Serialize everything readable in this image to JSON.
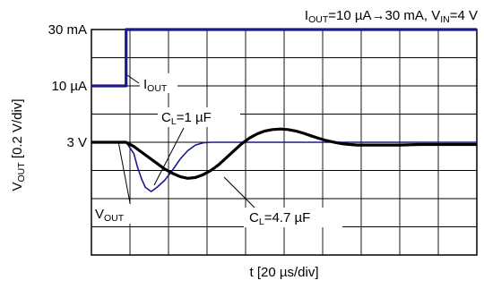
{
  "chart_data": {
    "type": "line",
    "title": "I_OUT=10 µA→30 mA, V_IN=4 V",
    "title_parts": {
      "i": "I",
      "i_sub": "OUT",
      "rest1": "=10 µA→30 mA, V",
      "v_sub": "IN",
      "rest2": "=4 V"
    },
    "xlabel": "t [20 µs/div]",
    "ylabel": "V_OUT [0.2 V/div]",
    "ylabel_parts": {
      "v": "V",
      "sub": "OUT",
      "rest": " [0.2 V/div]"
    },
    "x_units": "µs",
    "x_per_div": 20,
    "x_divisions": 10,
    "y_divisions": 8,
    "xlim": [
      0,
      200
    ],
    "grid": true,
    "y_tick_labels": [
      {
        "text": "30 mA",
        "div": 0
      },
      {
        "text": "10 µA",
        "div": 2
      },
      {
        "text": "3 V",
        "div": 4
      }
    ],
    "annotations": {
      "iout": {
        "main": "I",
        "sub": "OUT"
      },
      "cl1": {
        "main": "C",
        "sub": "L",
        "rest": "=1 µF"
      },
      "vout": {
        "main": "V",
        "sub": "OUT"
      },
      "cl47": {
        "main": "C",
        "sub": "L",
        "rest": "=4.7 µF"
      }
    },
    "colors": {
      "trace_blue": "#1a1a8c",
      "trace_black": "#000000",
      "grid": "#000000"
    },
    "series": [
      {
        "id": "iout",
        "x": [
          0,
          18,
          18,
          200
        ],
        "y_div": [
          2,
          2,
          0,
          0
        ]
      },
      {
        "id": "vout_1uF",
        "x": [
          0,
          18,
          22,
          24,
          26,
          28,
          31,
          34,
          38,
          42,
          46,
          50,
          54,
          58,
          62,
          66,
          200
        ],
        "y_div": [
          4.0,
          4.0,
          4.4,
          4.9,
          5.3,
          5.6,
          5.75,
          5.6,
          5.35,
          5.0,
          4.6,
          4.3,
          4.1,
          4.02,
          4.0,
          4.0,
          4.0
        ]
      },
      {
        "id": "vout_4.7uF",
        "x": [
          0,
          18,
          22,
          26,
          30,
          34,
          38,
          42,
          46,
          50,
          54,
          58,
          62,
          66,
          70,
          74,
          78,
          82,
          86,
          90,
          94,
          98,
          102,
          106,
          110,
          114,
          118,
          122,
          126,
          130,
          134,
          138,
          142,
          146,
          150,
          160,
          170,
          180,
          190,
          200
        ],
        "y_div": [
          4.0,
          4.0,
          4.15,
          4.35,
          4.55,
          4.75,
          4.95,
          5.1,
          5.22,
          5.28,
          5.25,
          5.15,
          5.0,
          4.8,
          4.55,
          4.3,
          4.05,
          3.85,
          3.7,
          3.6,
          3.55,
          3.53,
          3.55,
          3.6,
          3.68,
          3.77,
          3.86,
          3.94,
          4.0,
          4.05,
          4.08,
          4.1,
          4.1,
          4.1,
          4.1,
          4.1,
          4.08,
          4.08,
          4.08,
          4.08
        ]
      }
    ]
  }
}
